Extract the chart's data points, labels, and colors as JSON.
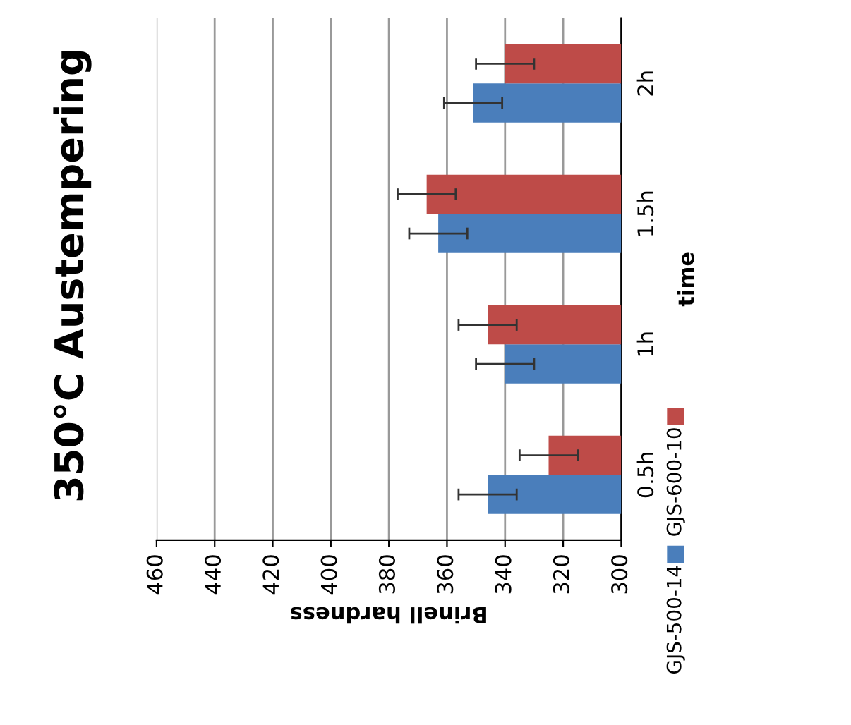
{
  "chart_data": {
    "type": "bar",
    "orientation": "horizontal",
    "title": "350°C Austempering",
    "xlabel": "Brinell hardness",
    "ylabel": "time",
    "categories": [
      "2h",
      "1.5h",
      "1h",
      "0.5h"
    ],
    "series": [
      {
        "name": "GJS-500-14",
        "color": "#4a7ebb",
        "values": [
          351,
          363,
          340,
          346
        ],
        "errors": [
          10,
          10,
          10,
          10
        ]
      },
      {
        "name": "GJS-600-10",
        "color": "#be4b48",
        "values": [
          340,
          367,
          346,
          325
        ],
        "errors": [
          10,
          10,
          10,
          10
        ]
      }
    ],
    "xlim": [
      460,
      300
    ],
    "xticks": [
      460,
      440,
      420,
      400,
      380,
      360,
      340,
      320,
      300
    ],
    "grid": "x",
    "legend": "right"
  }
}
